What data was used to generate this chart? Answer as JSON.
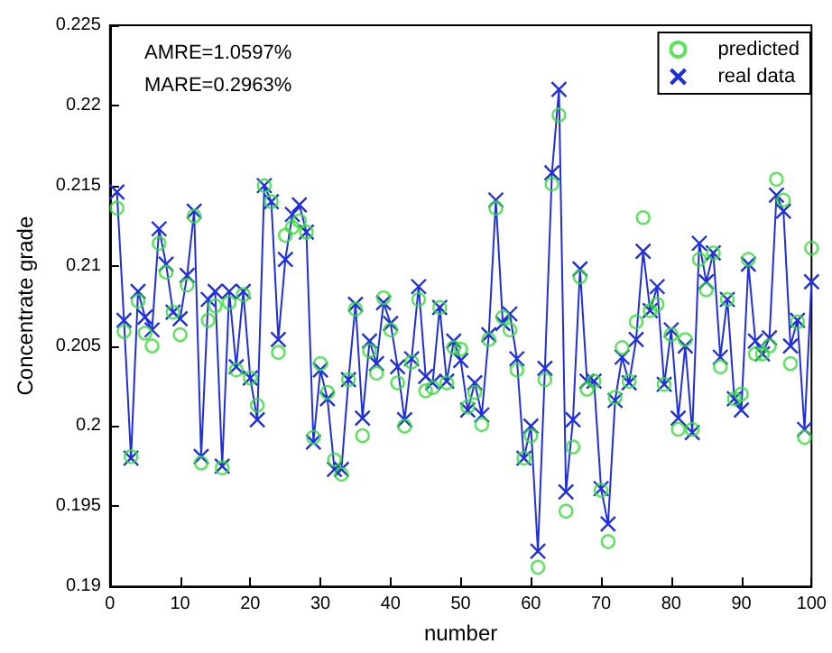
{
  "chart_data": {
    "type": "line",
    "xlabel": "number",
    "ylabel": "Concentrate grade",
    "annotations": [
      "AMRE=1.0597%",
      "MARE=0.2963%"
    ],
    "x": [
      1,
      2,
      3,
      4,
      5,
      6,
      7,
      8,
      9,
      10,
      11,
      12,
      13,
      14,
      15,
      16,
      17,
      18,
      19,
      20,
      21,
      22,
      23,
      24,
      25,
      26,
      27,
      28,
      29,
      30,
      31,
      32,
      33,
      34,
      35,
      36,
      37,
      38,
      39,
      40,
      41,
      42,
      43,
      44,
      45,
      46,
      47,
      48,
      49,
      50,
      51,
      52,
      53,
      54,
      55,
      56,
      57,
      58,
      59,
      60,
      61,
      62,
      63,
      64,
      65,
      66,
      67,
      68,
      69,
      70,
      71,
      72,
      73,
      74,
      75,
      76,
      77,
      78,
      79,
      80,
      81,
      82,
      83,
      84,
      85,
      86,
      87,
      88,
      89,
      90,
      91,
      92,
      93,
      94,
      95,
      96,
      97,
      98,
      99,
      100
    ],
    "series": [
      {
        "name": "predicted",
        "type": "scatter",
        "marker": "circle",
        "color": "#33dd33",
        "values": [
          0.2136,
          0.2059,
          0.1981,
          0.2078,
          0.2058,
          0.205,
          0.2114,
          0.2096,
          0.2071,
          0.2057,
          0.2088,
          0.2131,
          0.1977,
          0.2066,
          0.2075,
          0.1974,
          0.2077,
          0.2035,
          0.2082,
          0.203,
          0.2013,
          0.215,
          0.214,
          0.2046,
          0.2119,
          0.2124,
          0.2128,
          0.2121,
          0.1993,
          0.2039,
          0.2021,
          0.1979,
          0.197,
          0.2029,
          0.2073,
          0.1994,
          0.2047,
          0.2033,
          0.208,
          0.206,
          0.2027,
          0.2,
          0.204,
          0.2079,
          0.2022,
          0.2024,
          0.2074,
          0.2027,
          0.2049,
          0.2048,
          0.2012,
          0.2021,
          0.2001,
          0.2054,
          0.2136,
          0.2068,
          0.206,
          0.2035,
          0.198,
          0.1994,
          0.1912,
          0.2029,
          0.2151,
          0.2194,
          0.1947,
          0.1987,
          0.2093,
          0.2023,
          0.2028,
          0.196,
          0.1928,
          0.2018,
          0.2049,
          0.2028,
          0.2065,
          0.213,
          0.2072,
          0.2076,
          0.2026,
          0.2057,
          0.1998,
          0.2054,
          0.1998,
          0.2104,
          0.2085,
          0.2108,
          0.2037,
          0.2079,
          0.2017,
          0.202,
          0.2104,
          0.2045,
          0.2045,
          0.205,
          0.2154,
          0.2141,
          0.2039,
          0.2065,
          0.1993,
          0.2111
        ]
      },
      {
        "name": "real data",
        "marker": "cross",
        "color": "#1f2fe0",
        "values": [
          0.2146,
          0.2066,
          0.198,
          0.2084,
          0.2068,
          0.206,
          0.2123,
          0.2101,
          0.2071,
          0.2067,
          0.2094,
          0.2134,
          0.1981,
          0.2079,
          0.2084,
          0.1975,
          0.2084,
          0.2037,
          0.2084,
          0.203,
          0.2004,
          0.215,
          0.214,
          0.2054,
          0.2104,
          0.2132,
          0.2138,
          0.2121,
          0.199,
          0.2035,
          0.2017,
          0.1973,
          0.1973,
          0.2029,
          0.2076,
          0.2005,
          0.2053,
          0.2039,
          0.2077,
          0.2064,
          0.2037,
          0.2004,
          0.2042,
          0.2087,
          0.2031,
          0.2027,
          0.2074,
          0.2028,
          0.2053,
          0.2041,
          0.201,
          0.2027,
          0.2007,
          0.2057,
          0.2141,
          0.2064,
          0.207,
          0.2042,
          0.198,
          0.2,
          0.1922,
          0.2036,
          0.2158,
          0.221,
          0.1959,
          0.2004,
          0.2098,
          0.2028,
          0.2028,
          0.1961,
          0.1939,
          0.2016,
          0.2043,
          0.2027,
          0.2054,
          0.2109,
          0.2072,
          0.2087,
          0.2026,
          0.206,
          0.2005,
          0.205,
          0.1996,
          0.2114,
          0.209,
          0.2108,
          0.2043,
          0.2079,
          0.2017,
          0.201,
          0.2101,
          0.2053,
          0.2045,
          0.2055,
          0.2144,
          0.2134,
          0.205,
          0.2066,
          0.1998,
          0.209
        ]
      }
    ],
    "xlim": [
      0,
      100
    ],
    "xticks": [
      0,
      10,
      20,
      30,
      40,
      50,
      60,
      70,
      80,
      90,
      100
    ],
    "ylim": [
      0.19,
      0.225
    ],
    "yticks": [
      0.19,
      0.195,
      0.2,
      0.205,
      0.21,
      0.215,
      0.22,
      0.225
    ],
    "grid": false,
    "legend": "top right",
    "line_style": "solid"
  }
}
